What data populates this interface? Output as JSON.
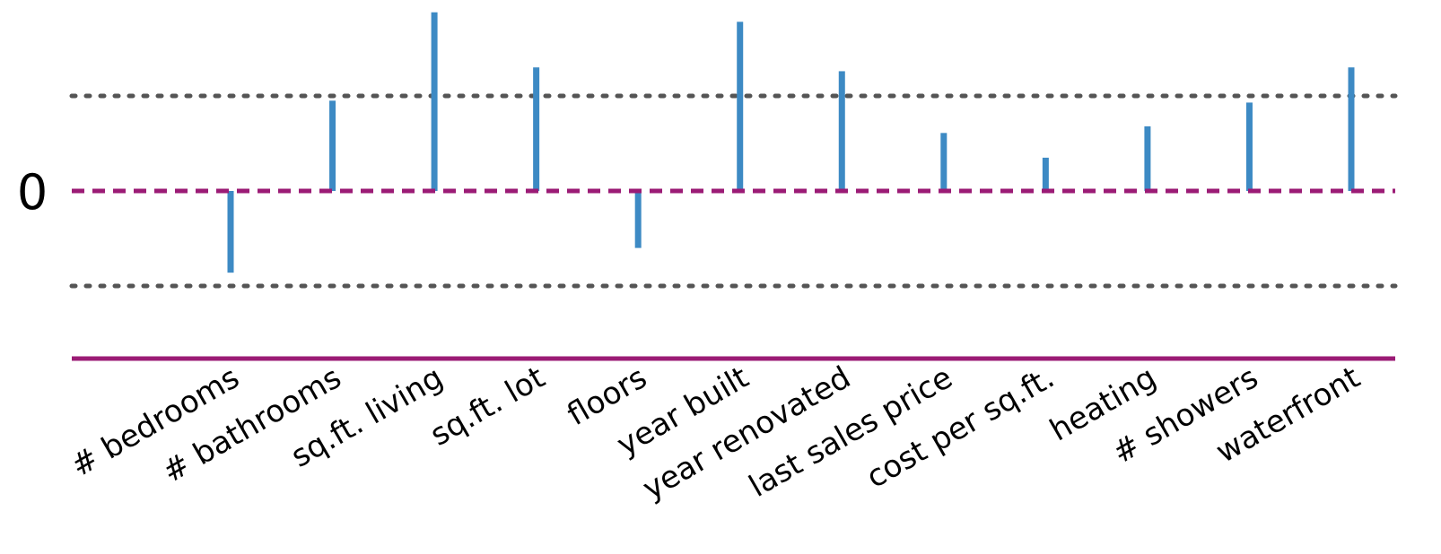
{
  "chart_data": {
    "type": "bar",
    "categories": [
      "# bedrooms",
      "# bathrooms",
      "sq.ft. living",
      "sq.ft. lot",
      "floors",
      "year built",
      "year renovated",
      "last sales price",
      "cost per sq.ft.",
      "heating",
      "# showers",
      "waterfront"
    ],
    "values": [
      -0.86,
      0.95,
      1.88,
      1.3,
      -0.6,
      1.78,
      1.26,
      0.61,
      0.35,
      0.68,
      0.93,
      1.3
    ],
    "zero_label": "0",
    "reference_lines": [
      1,
      -1
    ],
    "ylim": [
      -1.8,
      1.95
    ],
    "colors": {
      "bars": "#3d8ac4",
      "baseline": "#9b1b75",
      "reference": "#555555",
      "axis": "#9b1b75"
    }
  }
}
